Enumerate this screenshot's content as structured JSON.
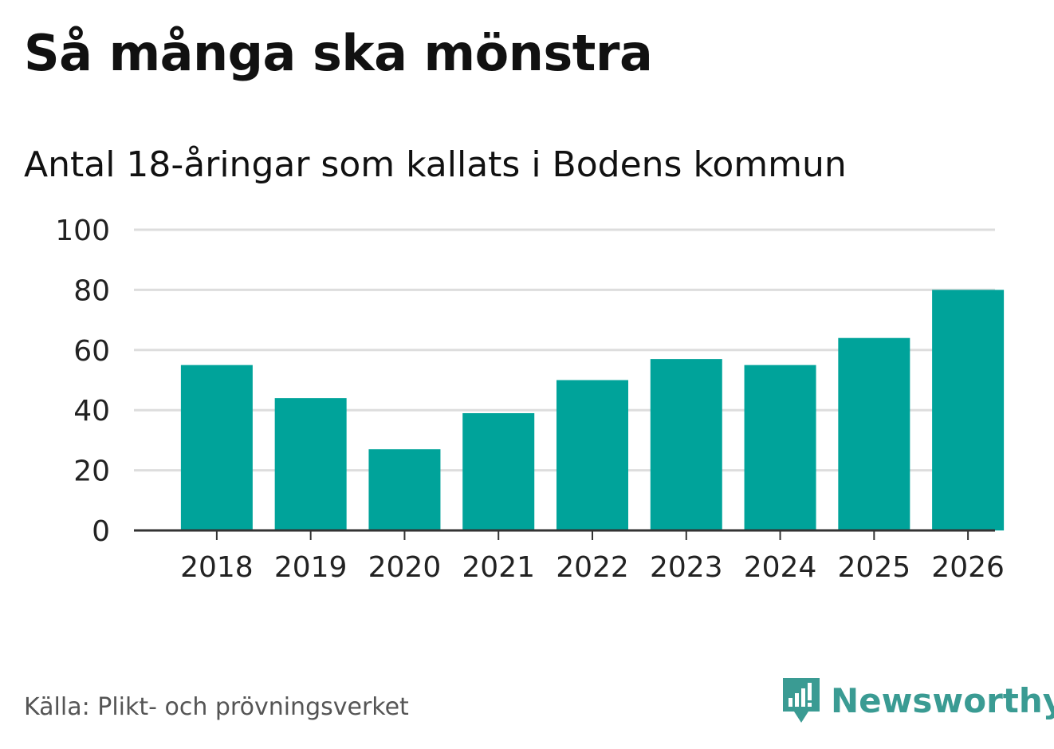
{
  "title": "Så många ska mönstra",
  "subtitle": "Antal 18-åringar som kallats i Bodens kommun",
  "source": "Källa: Plikt- och prövningsverket",
  "brand": {
    "name": "Newsworthy",
    "icon": "newsworthy-logo-icon",
    "color": "#3a9b93"
  },
  "colors": {
    "bar": "#00a39a",
    "grid": "#dddddd",
    "axis": "#333333",
    "text": "#111111"
  },
  "chart_data": {
    "type": "bar",
    "title": "Så många ska mönstra",
    "subtitle": "Antal 18-åringar som kallats i Bodens kommun",
    "xlabel": "",
    "ylabel": "",
    "categories": [
      "2018",
      "2019",
      "2020",
      "2021",
      "2022",
      "2023",
      "2024",
      "2025",
      "2026"
    ],
    "values": [
      55,
      44,
      27,
      39,
      50,
      57,
      55,
      64,
      80
    ],
    "ylim": [
      0,
      100
    ],
    "yticks": [
      "0",
      "20",
      "40",
      "60",
      "80",
      "100"
    ],
    "grid": true,
    "legend": "none"
  }
}
